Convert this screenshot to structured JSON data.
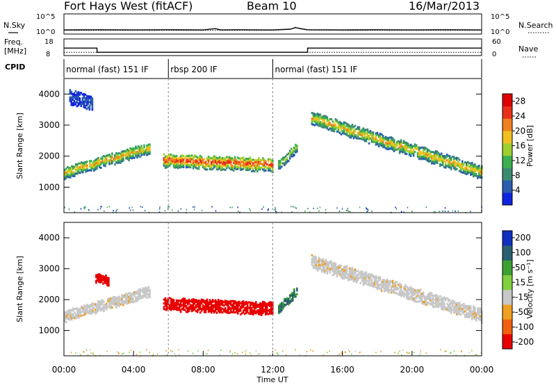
{
  "header": {
    "station": "Fort Hays West (fitACF)",
    "beam": "Beam 10",
    "date": "16/Mar/2013"
  },
  "top_panels": {
    "nsky_label": "N.Sky",
    "nsky_ticks": [
      "10^5",
      "10^0"
    ],
    "nsearch_label": "N.Search",
    "nsearch_ticks": [
      "10^5",
      "10^0"
    ],
    "freq_label_1": "Freq.",
    "freq_label_2": "[MHz]",
    "freq_ticks": [
      "18",
      "8"
    ],
    "nave_label": "Nave",
    "nave_ticks": [
      "60",
      "0"
    ],
    "cpid_label": "CPID"
  },
  "chart_data": [
    {
      "type": "line",
      "panel": "noise",
      "series": [
        {
          "name": "N.Sky",
          "x_hours": [
            0,
            2,
            4,
            6,
            8,
            8.7,
            9,
            10,
            12,
            13,
            13.3,
            13.6,
            14,
            16,
            18,
            20,
            22,
            24
          ],
          "values_log10": [
            0.95,
            1.0,
            0.95,
            1.0,
            0.95,
            1.3,
            0.95,
            1.0,
            0.95,
            1.15,
            1.6,
            1.3,
            1.0,
            0.95,
            1.0,
            0.95,
            1.0,
            0.95
          ]
        },
        {
          "name": "N.Search",
          "x_hours": [
            0,
            4,
            8,
            12,
            13,
            13.3,
            13.6,
            14,
            16,
            20,
            24
          ],
          "values_log10": [
            0.85,
            0.85,
            0.85,
            0.85,
            1.1,
            1.7,
            1.2,
            0.9,
            0.85,
            0.85,
            0.85
          ]
        }
      ]
    },
    {
      "type": "line",
      "panel": "freq-nave",
      "series": [
        {
          "name": "Freq.",
          "x_hours": [
            0,
            1.9,
            1.9,
            12.3,
            12.3,
            14.0,
            14.0,
            24
          ],
          "values": [
            12.5,
            12.5,
            10.0,
            10.0,
            10.0,
            10.0,
            12.5,
            12.5
          ]
        },
        {
          "name": "Nave",
          "x_hours": [
            0,
            24
          ],
          "values": [
            12,
            12
          ]
        }
      ],
      "ylim_freq": [
        8,
        18
      ],
      "ylim_nave": [
        0,
        60
      ]
    },
    {
      "type": "table",
      "panel": "cpid",
      "segments": [
        {
          "label": "normal (fast) 151 IF",
          "start_h": 0,
          "end_h": 6
        },
        {
          "label": "rbsp 200 IF",
          "start_h": 6,
          "end_h": 12
        },
        {
          "label": "normal (fast) 151 IF",
          "start_h": 12,
          "end_h": 24
        }
      ]
    },
    {
      "type": "heatmap",
      "panel": "power",
      "ylabel": "Slant Range [km]",
      "ylim": [
        180,
        4500
      ],
      "yticks": [
        1000,
        2000,
        3000,
        4000
      ],
      "colorbar_label": "Power [dB]",
      "colorbar_ticks": [
        4,
        8,
        12,
        16,
        20,
        24,
        28
      ],
      "clim": [
        0,
        30
      ],
      "colors": [
        "#1024e0",
        "#2a5cb0",
        "#3a8a70",
        "#3cb050",
        "#9ed030",
        "#f0c020",
        "#f08020",
        "#e83018",
        "#e00000"
      ],
      "features": [
        {
          "name": "main band early",
          "start_h": 0,
          "end_h": 4.9,
          "center_km_start": 1450,
          "center_km_end": 2250,
          "width_km": 350,
          "peak_db": 20
        },
        {
          "name": "high band 01h",
          "start_h": 0.3,
          "end_h": 1.6,
          "center_km_start": 3900,
          "center_km_end": 3700,
          "width_km": 450,
          "peak_db": 5
        },
        {
          "name": "main band midday",
          "start_h": 5.7,
          "end_h": 12.0,
          "center_km_start": 1850,
          "center_km_end": 1700,
          "width_km": 420,
          "peak_db": 26
        },
        {
          "name": "spike 12h",
          "start_h": 12.3,
          "end_h": 13.4,
          "center_km_start": 1700,
          "center_km_end": 2300,
          "width_km": 300,
          "peak_db": 16
        },
        {
          "name": "afternoon band",
          "start_h": 14.2,
          "end_h": 24.0,
          "center_km_start": 3200,
          "center_km_end": 1450,
          "width_km": 380,
          "peak_db": 20
        }
      ]
    },
    {
      "type": "heatmap",
      "panel": "velocity",
      "ylabel": "Slant Range [km]",
      "ylim": [
        180,
        4500
      ],
      "yticks": [
        1000,
        2000,
        3000,
        4000
      ],
      "xlabel": "Time UT",
      "xticks": [
        "00:00",
        "04:00",
        "08:00",
        "12:00",
        "16:00",
        "20:00",
        "00:00"
      ],
      "colorbar_label": "Velocity [m s⁻¹]",
      "colorbar_ticks": [
        "200",
        "100",
        "50",
        "15",
        "-15",
        "-50",
        "-100",
        "-200"
      ],
      "colors": [
        "#1030c0",
        "#2a6070",
        "#3ca030",
        "#80d040",
        "#c8c8c8",
        "#f0a020",
        "#f06010",
        "#e80000"
      ],
      "features": [
        {
          "name": "early ground scatter",
          "start_h": 0,
          "end_h": 4.9,
          "center_km_start": 1450,
          "center_km_end": 2250,
          "width_km": 350,
          "velocity": 0
        },
        {
          "name": "red blob 02h",
          "start_h": 1.8,
          "end_h": 2.6,
          "center_km_start": 2700,
          "center_km_end": 2600,
          "width_km": 300,
          "velocity": -200
        },
        {
          "name": "midday westward flow",
          "start_h": 5.7,
          "end_h": 12.0,
          "center_km_start": 1850,
          "center_km_end": 1700,
          "width_km": 420,
          "velocity": -200
        },
        {
          "name": "spike 12h",
          "start_h": 12.3,
          "end_h": 13.4,
          "center_km_start": 1700,
          "center_km_end": 2300,
          "width_km": 300,
          "velocity": 80
        },
        {
          "name": "afternoon ground scatter",
          "start_h": 14.2,
          "end_h": 24.0,
          "center_km_start": 3200,
          "center_km_end": 1450,
          "width_km": 380,
          "velocity": 0
        }
      ]
    }
  ]
}
